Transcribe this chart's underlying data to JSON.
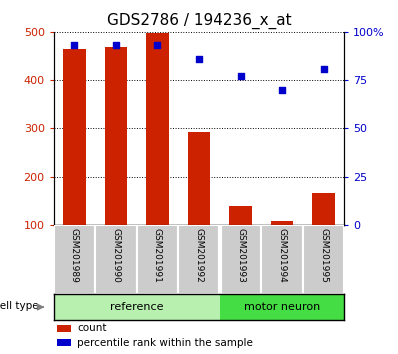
{
  "title": "GDS2786 / 194236_x_at",
  "samples": [
    "GSM201989",
    "GSM201990",
    "GSM201991",
    "GSM201992",
    "GSM201993",
    "GSM201994",
    "GSM201995"
  ],
  "counts": [
    465,
    468,
    497,
    293,
    138,
    107,
    165
  ],
  "percentile_ranks": [
    93,
    93,
    93,
    86,
    77,
    70,
    81
  ],
  "groups": [
    {
      "label": "reference",
      "n": 4,
      "color": "#b8f0b0"
    },
    {
      "label": "motor neuron",
      "n": 3,
      "color": "#44dd44"
    }
  ],
  "group_divider_idx": 4,
  "ylim_left": [
    100,
    500
  ],
  "ylim_right": [
    0,
    100
  ],
  "yticks_left": [
    100,
    200,
    300,
    400,
    500
  ],
  "yticks_right": [
    0,
    25,
    50,
    75,
    100
  ],
  "yticklabels_right": [
    "0",
    "25",
    "50",
    "75",
    "100%"
  ],
  "bar_color": "#cc2200",
  "scatter_color": "#0000cc",
  "bar_width": 0.55,
  "cell_type_label": "cell type",
  "legend_count": "count",
  "legend_percentile": "percentile rank within the sample",
  "bg_plot": "#ffffff",
  "bg_label_cell": "#cccccc",
  "title_fontsize": 11,
  "tick_fontsize": 8,
  "label_fontsize": 6.5
}
